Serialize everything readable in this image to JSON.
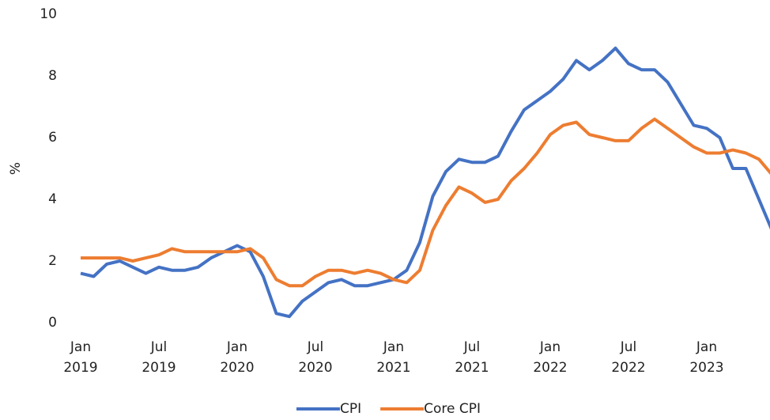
{
  "chart_data": {
    "type": "line",
    "y_label": "%",
    "categories": [
      "Jan 2019",
      null,
      null,
      null,
      null,
      null,
      "Jul 2019",
      null,
      null,
      null,
      null,
      null,
      "Jan 2020",
      null,
      null,
      null,
      null,
      null,
      "Jul 2020",
      null,
      null,
      null,
      null,
      null,
      "Jan 2021",
      null,
      null,
      null,
      null,
      null,
      "Jul 2021",
      null,
      null,
      null,
      null,
      null,
      "Jan 2022",
      null,
      null,
      null,
      null,
      null,
      "Jul 2022",
      null,
      null,
      null,
      null,
      null,
      "Jan 2023",
      null,
      null,
      null,
      null,
      null
    ],
    "series": [
      {
        "name": "CPI",
        "color": "#4472c4",
        "values": [
          1.6,
          1.5,
          1.9,
          2.0,
          1.8,
          1.6,
          1.8,
          1.7,
          1.7,
          1.8,
          2.1,
          2.3,
          2.5,
          2.3,
          1.5,
          0.3,
          0.2,
          0.7,
          1.0,
          1.3,
          1.4,
          1.2,
          1.2,
          1.3,
          1.4,
          1.7,
          2.6,
          4.1,
          4.9,
          5.3,
          5.2,
          5.2,
          5.4,
          6.2,
          6.9,
          7.2,
          7.5,
          7.9,
          8.5,
          8.2,
          8.5,
          8.9,
          8.4,
          8.2,
          8.2,
          7.8,
          7.1,
          6.4,
          6.3,
          6.0,
          5.0,
          5.0,
          4.0,
          3.0
        ]
      },
      {
        "name": "Core CPI",
        "color": "#ed7d31",
        "values": [
          2.1,
          2.1,
          2.1,
          2.1,
          2.0,
          2.1,
          2.2,
          2.4,
          2.3,
          2.3,
          2.3,
          2.3,
          2.3,
          2.4,
          2.1,
          1.4,
          1.2,
          1.2,
          1.5,
          1.7,
          1.7,
          1.6,
          1.7,
          1.6,
          1.4,
          1.3,
          1.7,
          3.0,
          3.8,
          4.4,
          4.2,
          3.9,
          4.0,
          4.6,
          5.0,
          5.5,
          6.1,
          6.4,
          6.5,
          6.1,
          6.0,
          5.9,
          5.9,
          6.3,
          6.6,
          6.3,
          6.0,
          5.7,
          5.5,
          5.5,
          5.6,
          5.5,
          5.3,
          4.8
        ]
      }
    ],
    "ylim": [
      0,
      10
    ],
    "yticks": [
      0,
      2,
      4,
      6,
      8,
      10
    ],
    "grid": false,
    "legend": "bottom"
  }
}
